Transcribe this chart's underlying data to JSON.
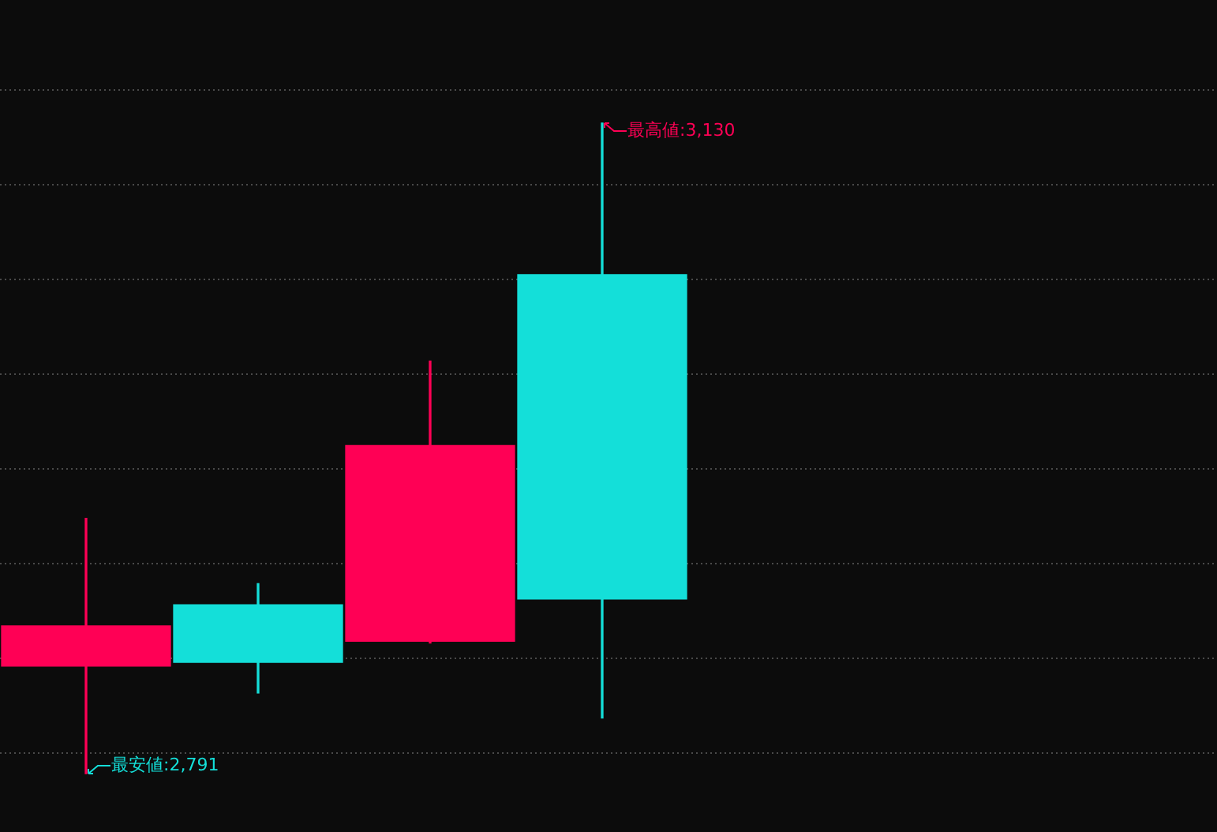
{
  "chart_data": {
    "type": "candlestick",
    "categories": [
      null,
      null,
      null,
      null
    ],
    "ohlc": [
      [
        2847,
        2924,
        2791,
        2868
      ],
      [
        2879,
        2890,
        2833,
        2849
      ],
      [
        2860,
        3006,
        2859,
        2962
      ],
      [
        3051,
        3130,
        2820,
        2882
      ]
    ],
    "colors": [
      "#ff0055",
      "#14dfd9",
      "#ff0055",
      "#14dfd9"
    ],
    "grid": "y",
    "tick_labels": false,
    "annotations": [
      "最高値:3,130",
      "最安値:2,791"
    ]
  }
}
